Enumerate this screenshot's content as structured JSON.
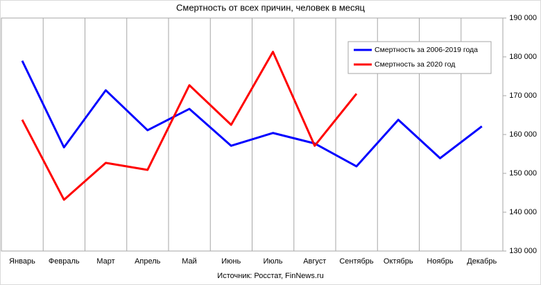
{
  "chart_data": {
    "type": "line",
    "title": "Смертность от всех причин, человек в месяц",
    "source": "Источник: Росстат, FinNews.ru",
    "categories": [
      "Январь",
      "Февраль",
      "Март",
      "Апрель",
      "Май",
      "Июнь",
      "Июль",
      "Август",
      "Сентябрь",
      "Октябрь",
      "Ноябрь",
      "Декабрь"
    ],
    "series": [
      {
        "name": "Смертность за 2006-2019  года",
        "color": "#0000ff",
        "values": [
          179000,
          156700,
          171400,
          161100,
          166600,
          157100,
          160400,
          157700,
          151800,
          163800,
          153900,
          162100
        ]
      },
      {
        "name": "Смертность за 2020  год",
        "color": "#ff0000",
        "values": [
          163800,
          143200,
          152700,
          150900,
          172700,
          162500,
          181300,
          157100,
          170500,
          null,
          null,
          null
        ]
      }
    ],
    "ylim": [
      130000,
      190000
    ],
    "yticks": [
      {
        "value": 130000,
        "label": "130 000"
      },
      {
        "value": 140000,
        "label": "140 000"
      },
      {
        "value": 150000,
        "label": "150 000"
      },
      {
        "value": 160000,
        "label": "160 000"
      },
      {
        "value": 170000,
        "label": "170 000"
      },
      {
        "value": 180000,
        "label": "180 000"
      },
      {
        "value": 190000,
        "label": "190 000"
      }
    ],
    "grid": true,
    "legend": "upper right"
  }
}
